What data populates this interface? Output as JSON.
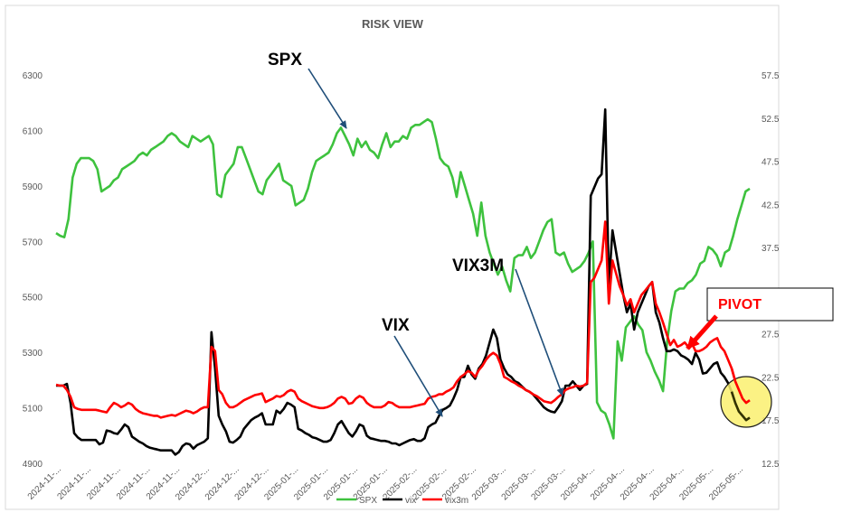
{
  "chart_data": {
    "type": "line",
    "title": "RISK VIEW",
    "x_tick_labels": [
      "2024-11-...",
      "2024-11-...",
      "2024-11-...",
      "2024-11-...",
      "2024-11-...",
      "2024-12-...",
      "2024-12-...",
      "2024-12-...",
      "2025-01-...",
      "2025-01-...",
      "2025-01-...",
      "2025-01-...",
      "2025-02-...",
      "2025-02-...",
      "2025-02-...",
      "2025-03-...",
      "2025-03-...",
      "2025-03-...",
      "2025-04-...",
      "2025-04-...",
      "2025-04-...",
      "2025-04-...",
      "2025-05-...",
      "2025-05-..."
    ],
    "left_axis": {
      "ticks": [
        "4900",
        "5100",
        "5300",
        "5500",
        "5700",
        "5900",
        "6100",
        "6300"
      ],
      "range": [
        4900,
        6300
      ]
    },
    "right_axis": {
      "ticks": [
        "12.5",
        "17.5",
        "22.5",
        "27.5",
        "32.5",
        "37.5",
        "42.5",
        "47.5",
        "52.5",
        "57.5"
      ],
      "range": [
        12.5,
        57.5
      ]
    },
    "grid": false,
    "legend_position": "bottom",
    "series": [
      {
        "name": "SPX",
        "axis": "left",
        "color": "#3ec23e",
        "values": [
          5730,
          5720,
          5715,
          5780,
          5930,
          5980,
          6000,
          6000,
          6000,
          5990,
          5960,
          5880,
          5890,
          5900,
          5920,
          5930,
          5960,
          5970,
          5980,
          5990,
          6010,
          6020,
          6010,
          6030,
          6040,
          6050,
          6060,
          6080,
          6090,
          6080,
          6060,
          6050,
          6040,
          6080,
          6070,
          6060,
          6070,
          6080,
          6050,
          5870,
          5860,
          5940,
          5960,
          5980,
          6040,
          6040,
          6000,
          5960,
          5920,
          5880,
          5870,
          5920,
          5940,
          5960,
          5980,
          5920,
          5910,
          5900,
          5830,
          5840,
          5850,
          5890,
          5950,
          5990,
          6000,
          6010,
          6020,
          6050,
          6090,
          6110,
          6080,
          6050,
          6010,
          6070,
          6040,
          6060,
          6030,
          6020,
          6000,
          6050,
          6090,
          6040,
          6060,
          6060,
          6080,
          6070,
          6110,
          6120,
          6120,
          6130,
          6140,
          6130,
          6070,
          6000,
          5980,
          5970,
          5930,
          5860,
          5950,
          5900,
          5850,
          5800,
          5720,
          5840,
          5720,
          5660,
          5620,
          5580,
          5610,
          5560,
          5520,
          5640,
          5650,
          5650,
          5680,
          5640,
          5660,
          5700,
          5740,
          5770,
          5780,
          5660,
          5650,
          5660,
          5620,
          5590,
          5600,
          5610,
          5630,
          5660,
          5700,
          5120,
          5090,
          5080,
          5040,
          4990,
          5340,
          5270,
          5390,
          5410,
          5430,
          5400,
          5380,
          5300,
          5270,
          5230,
          5200,
          5160,
          5340,
          5450,
          5520,
          5530,
          5530,
          5550,
          5560,
          5580,
          5620,
          5630,
          5680,
          5670,
          5650,
          5610,
          5660,
          5670,
          5720,
          5780,
          5830,
          5880,
          5890
        ]
      },
      {
        "name": "vix",
        "axis": "right",
        "color": "#000000",
        "values": [
          21.5,
          21.5,
          21.5,
          21.7,
          19.5,
          16.0,
          15.5,
          15.2,
          15.2,
          15.2,
          15.2,
          15.2,
          14.7,
          14.9,
          16.3,
          16.2,
          16.0,
          15.9,
          16.4,
          17.0,
          16.7,
          15.6,
          15.3,
          15.0,
          14.8,
          14.5,
          14.3,
          14.2,
          14.1,
          14.0,
          14.0,
          14.0,
          14.0,
          13.5,
          13.8,
          14.5,
          14.8,
          14.7,
          14.2,
          14.6,
          14.8,
          15.0,
          15.4,
          27.7,
          23.5,
          18.0,
          17.0,
          16.2,
          15.0,
          14.9,
          15.2,
          15.6,
          16.5,
          17.0,
          17.5,
          17.8,
          18.0,
          18.3,
          17.0,
          17.0,
          17.0,
          18.6,
          18.3,
          18.8,
          19.5,
          19.3,
          19.0,
          16.5,
          16.3,
          16.0,
          15.8,
          15.5,
          15.4,
          15.2,
          15.0,
          15.0,
          15.2,
          16.0,
          17.0,
          17.4,
          16.7,
          16.0,
          15.6,
          16.2,
          17.0,
          16.8,
          15.7,
          15.4,
          15.3,
          15.2,
          15.1,
          15.1,
          15.0,
          14.8,
          14.8,
          14.6,
          14.8,
          15.0,
          15.2,
          15.3,
          15.1,
          15.1,
          15.4,
          16.7,
          17.0,
          17.2,
          18.0,
          18.7,
          18.9,
          19.2,
          20.0,
          21.0,
          22.5,
          22.5,
          23.8,
          22.8,
          22.3,
          23.5,
          24.0,
          25.0,
          26.5,
          28.0,
          27.0,
          24.5,
          23.5,
          22.8,
          22.5,
          22.0,
          21.8,
          21.4,
          21.0,
          20.8,
          20.5,
          20.0,
          19.5,
          19.0,
          18.7,
          18.5,
          18.4,
          19.0,
          19.7,
          21.5,
          21.5,
          22.0,
          21.5,
          21.0,
          21.5,
          21.7,
          43.5,
          44.5,
          45.5,
          46.0,
          53.5,
          33.0,
          39.5,
          37.0,
          34.5,
          32.0,
          30.0,
          31.0,
          28.0,
          30.0,
          31.0,
          32.0,
          33.0,
          33.5,
          30.0,
          28.8,
          27.0,
          25.5,
          25.5,
          25.7,
          25.5,
          25.0,
          24.8,
          24.5,
          24.0,
          25.3,
          24.5,
          22.9,
          23.0,
          23.5,
          24.0,
          24.2,
          23.0,
          22.5,
          21.8,
          20.8,
          19.5,
          18.5,
          18.0,
          17.5,
          17.8
        ]
      },
      {
        "name": "vix3m",
        "axis": "right",
        "color": "#ff0000",
        "values": [
          21.6,
          21.5,
          21.5,
          21.0,
          20.2,
          19.0,
          18.8,
          18.7,
          18.7,
          18.7,
          18.7,
          18.7,
          18.6,
          18.5,
          18.4,
          19.0,
          19.5,
          19.3,
          19.0,
          19.2,
          19.5,
          19.3,
          18.8,
          18.5,
          18.3,
          18.2,
          18.1,
          18.0,
          18.0,
          17.8,
          17.9,
          18.0,
          18.1,
          18.0,
          18.2,
          18.4,
          18.6,
          18.5,
          18.3,
          18.5,
          18.8,
          19.0,
          19.0,
          26.0,
          25.5,
          21.0,
          20.5,
          19.5,
          19.0,
          19.0,
          19.2,
          19.5,
          19.8,
          20.0,
          20.2,
          20.4,
          20.5,
          20.6,
          19.6,
          19.8,
          20.0,
          20.3,
          20.2,
          20.4,
          20.8,
          21.0,
          20.8,
          20.0,
          19.7,
          19.5,
          19.3,
          19.1,
          19.0,
          18.9,
          18.9,
          19.0,
          19.2,
          19.5,
          20.0,
          20.2,
          20.0,
          19.4,
          19.5,
          20.0,
          20.3,
          20.1,
          19.5,
          19.2,
          19.0,
          19.0,
          19.0,
          19.2,
          19.6,
          19.5,
          19.2,
          19.0,
          19.0,
          19.0,
          19.0,
          19.1,
          19.2,
          19.3,
          19.4,
          20.0,
          20.2,
          20.3,
          20.5,
          20.5,
          20.8,
          21.0,
          21.3,
          22.0,
          22.5,
          22.8,
          23.2,
          23.0,
          22.5,
          23.3,
          23.8,
          24.5,
          25.0,
          25.3,
          25.0,
          24.0,
          22.5,
          22.3,
          22.0,
          21.8,
          21.5,
          21.3,
          21.0,
          20.8,
          20.5,
          20.3,
          20.0,
          19.7,
          19.6,
          19.5,
          19.8,
          20.2,
          20.5,
          21.0,
          21.2,
          21.3,
          21.5,
          21.4,
          21.5,
          21.8,
          33.5,
          34.0,
          35.0,
          36.0,
          40.5,
          31.0,
          36.0,
          34.5,
          33.0,
          32.0,
          30.8,
          31.5,
          30.0,
          31.0,
          32.0,
          32.5,
          33.0,
          33.5,
          31.0,
          30.0,
          28.8,
          27.5,
          26.2,
          26.8,
          26.0,
          26.2,
          26.5,
          26.0,
          26.4,
          25.5,
          25.5,
          25.7,
          26.0,
          26.5,
          26.8,
          27.0,
          26.0,
          25.5,
          24.5,
          23.5,
          22.0,
          21.0,
          20.0,
          19.5,
          19.8
        ]
      }
    ],
    "annotations": [
      {
        "label": "SPX"
      },
      {
        "label": "VIX3M"
      },
      {
        "label": "VIX"
      },
      {
        "label": "PIVOT",
        "color": "#ff0000"
      }
    ]
  }
}
